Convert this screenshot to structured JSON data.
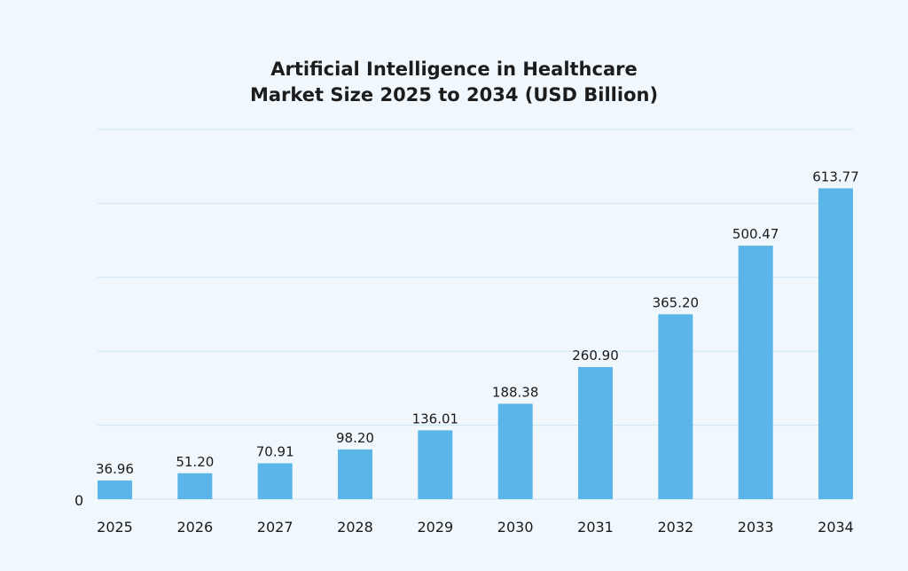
{
  "chart_data": {
    "type": "bar",
    "title_line1": "Artificial Intelligence in Healthcare",
    "title_line2": "Market Size 2025 to 2034 (USD Billion)",
    "categories": [
      "2025",
      "2026",
      "2027",
      "2028",
      "2029",
      "2030",
      "2031",
      "2032",
      "2033",
      "2034"
    ],
    "values": [
      36.96,
      51.2,
      70.91,
      98.2,
      136.01,
      188.38,
      260.9,
      365.2,
      500.47,
      613.77
    ],
    "value_labels": [
      "36.96",
      "51.20",
      "70.91",
      "98.20",
      "136.01",
      "188.38",
      "260.90",
      "365.20",
      "500.47",
      "613.77"
    ],
    "y_tick_label": "0",
    "xlabel": "",
    "ylabel": "",
    "ylim": [
      0,
      730
    ],
    "grid": true,
    "legend": "none",
    "colors": {
      "bar": "#5bb5e8",
      "grid": "#cde6f5",
      "background": "#f0f8fd"
    }
  }
}
